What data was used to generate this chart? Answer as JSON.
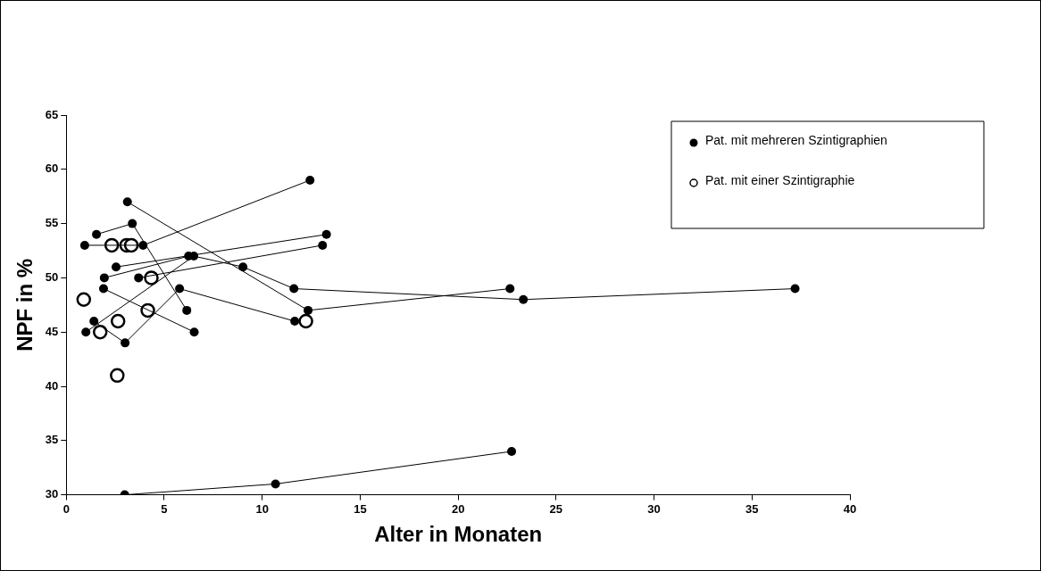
{
  "chart_data": {
    "type": "line",
    "xlabel": "Alter in Monaten",
    "ylabel": "NPF in %",
    "xlim": [
      0,
      40
    ],
    "xticks": [
      0,
      5,
      10,
      15,
      20,
      25,
      30,
      35,
      40
    ],
    "ylim": [
      30,
      65
    ],
    "yticks": [
      30,
      35,
      40,
      45,
      50,
      55,
      60,
      65
    ],
    "grid": false,
    "legend": "top right",
    "marker": "circle",
    "line_style": "solid",
    "series": [
      {
        "name": "Pat. mit mehreren Szintigraphien",
        "color": "#000000",
        "x": [
          0.94,
          3.92,
          12.44
        ],
        "values": [
          53,
          53,
          59
        ]
      },
      {
        "color": "#000000",
        "x": [
          1.54,
          3.37,
          6.15
        ],
        "values": [
          54,
          55,
          47
        ]
      },
      {
        "color": "#000000",
        "x": [
          3.12,
          12.34,
          22.65
        ],
        "values": [
          57,
          47,
          49
        ]
      },
      {
        "color": "#000000",
        "x": [
          2.54,
          13.28
        ],
        "values": [
          51,
          54
        ]
      },
      {
        "color": "#000000",
        "x": [
          1.94,
          6.24
        ],
        "values": [
          50,
          52
        ]
      },
      {
        "color": "#000000",
        "x": [
          1.0,
          6.51,
          9.02,
          11.62,
          23.33,
          37.2
        ],
        "values": [
          45,
          52,
          51,
          49,
          48,
          49
        ]
      },
      {
        "color": "#000000",
        "x": [
          3.69,
          13.08
        ],
        "values": [
          50,
          53
        ]
      },
      {
        "color": "#000000",
        "x": [
          1.9,
          6.53
        ],
        "values": [
          49,
          45
        ]
      },
      {
        "color": "#000000",
        "x": [
          1.41,
          3.0,
          5.78,
          11.66
        ],
        "values": [
          46,
          44,
          49,
          46
        ]
      },
      {
        "color": "#000000",
        "x": [
          2.98,
          10.68,
          22.73
        ],
        "values": [
          30,
          31,
          34
        ]
      },
      {
        "name": "Pat. mit einer Szintigraphie",
        "type": "scatter",
        "color": "#000000",
        "x": [
          2.32,
          3.08,
          3.32,
          4.34,
          0.89,
          4.16,
          2.64,
          1.73,
          12.23,
          2.6
        ],
        "values": [
          53,
          53,
          53,
          50,
          48,
          47,
          46,
          45,
          46,
          41
        ]
      }
    ]
  }
}
